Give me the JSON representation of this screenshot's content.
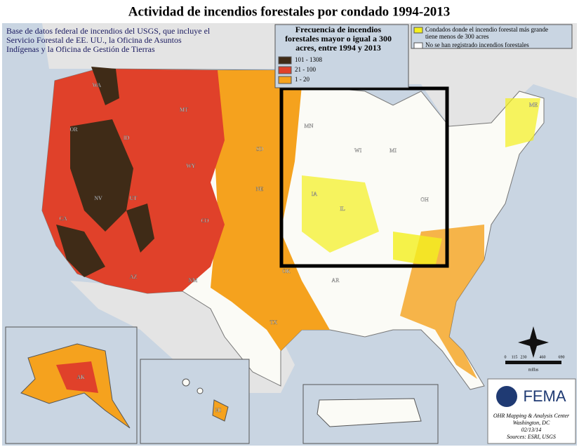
{
  "header": {
    "title": "Actividad de incendios forestales por condado 1994-2013"
  },
  "source_note": [
    "Base de datos federal de incendios del USGS, que incluye el",
    "Servicio Forestal de EE. UU., la Oficina de Asuntos",
    "Indígenas y la Oficina de Gestión de Tierras"
  ],
  "legend": {
    "title": [
      "Frecuencia de incendios",
      "forestales mayor o igual a 300",
      "acres, entre 1994 y 2013"
    ],
    "classes": [
      {
        "label": "101 - 1308",
        "color": "#3f2b17"
      },
      {
        "label": "21 - 100",
        "color": "#e0412a"
      },
      {
        "label": "1 - 20",
        "color": "#f5a21e"
      }
    ],
    "other": [
      {
        "label": [
          "Condados donde el incendio forestal más grande",
          "tiene menos de 300 acres"
        ],
        "color": "#f4f01e"
      },
      {
        "label": [
          "No se han registrado incendios forestales"
        ],
        "color": "#ffffff"
      }
    ]
  },
  "state_labels": [
    "WA",
    "OR",
    "CA",
    "NV",
    "ID",
    "MT",
    "WY",
    "UT",
    "AZ",
    "CO",
    "NM",
    "SD",
    "NE",
    "OK",
    "TX",
    "MN",
    "IA",
    "WI",
    "MI",
    "IL",
    "OH",
    "AR",
    "ME",
    "AK",
    "HI"
  ],
  "scale": {
    "ticks": [
      "0",
      "115",
      "230",
      "460",
      "690"
    ],
    "unit": "millas"
  },
  "credit": {
    "agency": "FEMA",
    "lines": [
      "OHR Mapping & Analysis Center",
      "Washington, DC",
      "02/13/14",
      "Sources: ESRI, USGS"
    ]
  }
}
